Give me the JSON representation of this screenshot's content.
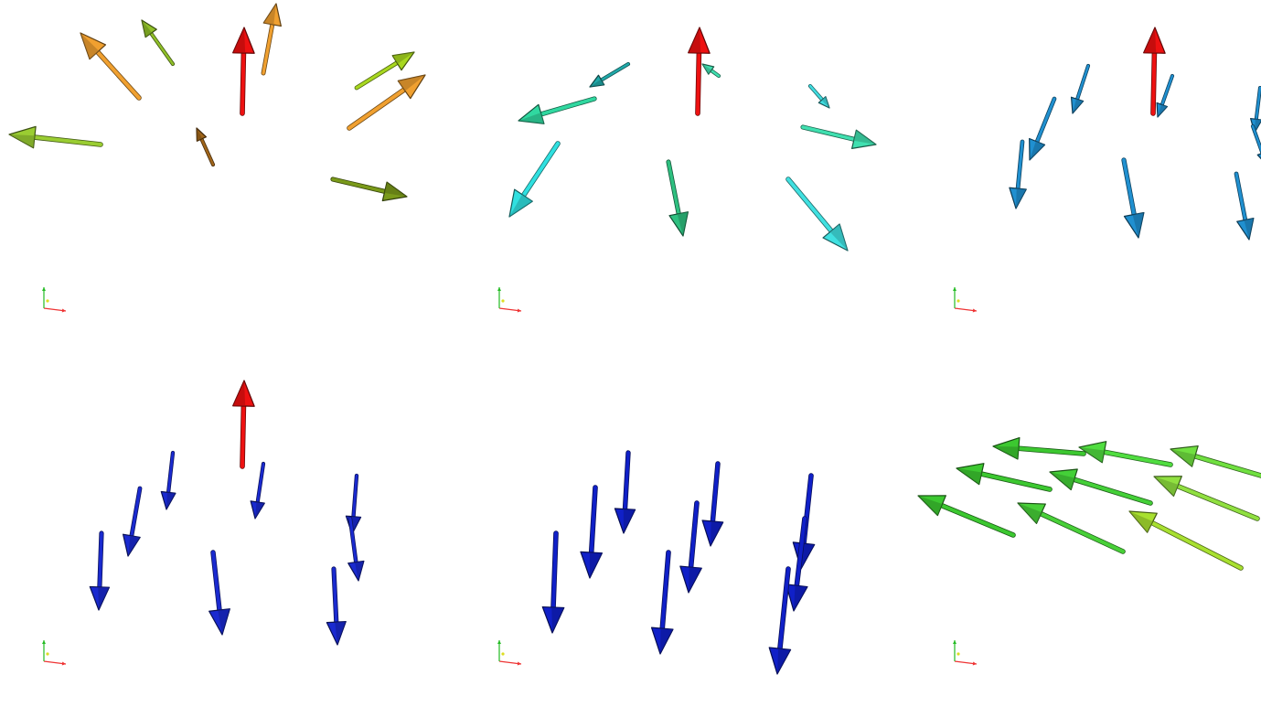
{
  "colors": {
    "reference_arrow": "#ee1111",
    "axis_x": "#ee3333",
    "axis_y": "#22bb22",
    "axis_z": "#dddd22",
    "background": "#ffffff"
  },
  "panels": [
    {
      "name": "panel-top-left",
      "has_reference": true,
      "arrows": [
        {
          "tail": [
            110,
            158
          ],
          "tip": [
            10,
            147
          ],
          "color": "#9acd32"
        },
        {
          "tail": [
            152,
            107
          ],
          "tip": [
            88,
            36
          ],
          "color": "#f0a030"
        },
        {
          "tail": [
            189,
            70
          ],
          "tip": [
            155,
            22
          ],
          "color": "#8fbf28"
        },
        {
          "tail": [
            288,
            80
          ],
          "tip": [
            302,
            4
          ],
          "color": "#f0a030"
        },
        {
          "tail": [
            390,
            96
          ],
          "tip": [
            453,
            57
          ],
          "color": "#a8d820"
        },
        {
          "tail": [
            382,
            140
          ],
          "tip": [
            465,
            82
          ],
          "color": "#f0a030"
        },
        {
          "tail": [
            364,
            196
          ],
          "tip": [
            445,
            215
          ],
          "color": "#7a9a1a"
        },
        {
          "tail": [
            233,
            180
          ],
          "tip": [
            215,
            140
          ],
          "color": "#a0651a"
        }
      ]
    },
    {
      "name": "panel-top-middle",
      "has_reference": true,
      "arrows": [
        {
          "tail": [
            687,
            70
          ],
          "tip": [
            645,
            95
          ],
          "color": "#20a8a8"
        },
        {
          "tail": [
            650,
            108
          ],
          "tip": [
            567,
            132
          ],
          "color": "#30d8a0"
        },
        {
          "tail": [
            610,
            157
          ],
          "tip": [
            557,
            237
          ],
          "color": "#30e0e0"
        },
        {
          "tail": [
            731,
            177
          ],
          "tip": [
            747,
            258
          ],
          "color": "#2ec080"
        },
        {
          "tail": [
            786,
            83
          ],
          "tip": [
            768,
            70
          ],
          "color": "#40e0b0"
        },
        {
          "tail": [
            886,
            94
          ],
          "tip": [
            907,
            118
          ],
          "color": "#40dde0"
        },
        {
          "tail": [
            878,
            139
          ],
          "tip": [
            958,
            158
          ],
          "color": "#40e0b0"
        },
        {
          "tail": [
            862,
            196
          ],
          "tip": [
            927,
            274
          ],
          "color": "#40e0e0"
        }
      ]
    },
    {
      "name": "panel-top-right",
      "has_reference": true,
      "arrows": [
        {
          "tail": [
            1190,
            72
          ],
          "tip": [
            1173,
            124
          ],
          "color": "#2090d0"
        },
        {
          "tail": [
            1153,
            108
          ],
          "tip": [
            1126,
            175
          ],
          "color": "#2090d0"
        },
        {
          "tail": [
            1118,
            155
          ],
          "tip": [
            1111,
            228
          ],
          "color": "#2090d0"
        },
        {
          "tail": [
            1282,
            83
          ],
          "tip": [
            1266,
            128
          ],
          "color": "#2090d0"
        },
        {
          "tail": [
            1229,
            175
          ],
          "tip": [
            1245,
            260
          ],
          "color": "#2090d0"
        },
        {
          "tail": [
            1378,
            96
          ],
          "tip": [
            1372,
            145
          ],
          "color": "#2090d0"
        },
        {
          "tail": [
            1370,
            138
          ],
          "tip": [
            1385,
            180
          ],
          "color": "#2090d0"
        },
        {
          "tail": [
            1352,
            190
          ],
          "tip": [
            1366,
            262
          ],
          "color": "#2090d0"
        }
      ]
    },
    {
      "name": "panel-bottom-left",
      "has_reference": true,
      "arrows": [
        {
          "tail": [
            189,
            495
          ],
          "tip": [
            182,
            557
          ],
          "color": "#1a2ad0"
        },
        {
          "tail": [
            153,
            534
          ],
          "tip": [
            140,
            608
          ],
          "color": "#1a2ad0"
        },
        {
          "tail": [
            111,
            583
          ],
          "tip": [
            108,
            667
          ],
          "color": "#1a2ad0"
        },
        {
          "tail": [
            288,
            507
          ],
          "tip": [
            279,
            567
          ],
          "color": "#1a2ad0"
        },
        {
          "tail": [
            233,
            604
          ],
          "tip": [
            243,
            694
          ],
          "color": "#1a2ad0"
        },
        {
          "tail": [
            390,
            520
          ],
          "tip": [
            385,
            584
          ],
          "color": "#1a2ad0"
        },
        {
          "tail": [
            383,
            567
          ],
          "tip": [
            392,
            635
          ],
          "color": "#1a2ad0"
        },
        {
          "tail": [
            365,
            622
          ],
          "tip": [
            369,
            705
          ],
          "color": "#1a2ad0"
        }
      ]
    },
    {
      "name": "panel-bottom-middle",
      "has_reference": false,
      "arrows": [
        {
          "tail": [
            687,
            495
          ],
          "tip": [
            682,
            583
          ],
          "color": "#1020c8"
        },
        {
          "tail": [
            651,
            533
          ],
          "tip": [
            645,
            632
          ],
          "color": "#1020c8"
        },
        {
          "tail": [
            608,
            583
          ],
          "tip": [
            604,
            692
          ],
          "color": "#1020c8"
        },
        {
          "tail": [
            785,
            507
          ],
          "tip": [
            777,
            597
          ],
          "color": "#1020c8"
        },
        {
          "tail": [
            762,
            550
          ],
          "tip": [
            753,
            648
          ],
          "color": "#1020c8"
        },
        {
          "tail": [
            731,
            604
          ],
          "tip": [
            722,
            715
          ],
          "color": "#1020c8"
        },
        {
          "tail": [
            887,
            520
          ],
          "tip": [
            876,
            622
          ],
          "color": "#1020c8"
        },
        {
          "tail": [
            880,
            567
          ],
          "tip": [
            868,
            668
          ],
          "color": "#1020c8"
        },
        {
          "tail": [
            862,
            622
          ],
          "tip": [
            850,
            737
          ],
          "color": "#1020c8"
        }
      ]
    },
    {
      "name": "panel-bottom-right",
      "has_reference": false,
      "arrows": [
        {
          "tail": [
            1185,
            496
          ],
          "tip": [
            1086,
            488
          ],
          "color": "#3cc830"
        },
        {
          "tail": [
            1280,
            508
          ],
          "tip": [
            1180,
            489
          ],
          "color": "#50dd40"
        },
        {
          "tail": [
            1148,
            535
          ],
          "tip": [
            1046,
            512
          ],
          "color": "#3cc830"
        },
        {
          "tail": [
            1258,
            550
          ],
          "tip": [
            1148,
            516
          ],
          "color": "#44d038"
        },
        {
          "tail": [
            1108,
            585
          ],
          "tip": [
            1004,
            542
          ],
          "color": "#3cc830"
        },
        {
          "tail": [
            1228,
            603
          ],
          "tip": [
            1113,
            550
          ],
          "color": "#48d038"
        },
        {
          "tail": [
            1379,
            520
          ],
          "tip": [
            1280,
            491
          ],
          "color": "#70e040"
        },
        {
          "tail": [
            1375,
            567
          ],
          "tip": [
            1262,
            521
          ],
          "color": "#90e040"
        },
        {
          "tail": [
            1357,
            621
          ],
          "tip": [
            1235,
            559
          ],
          "color": "#a8e030"
        }
      ]
    }
  ]
}
